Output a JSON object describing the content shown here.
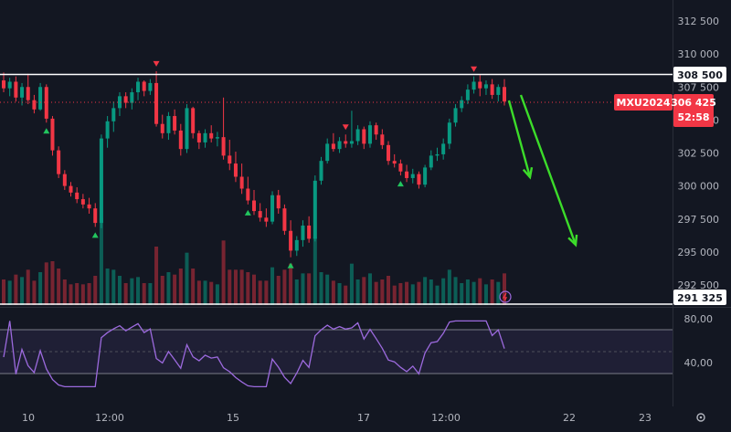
{
  "chart_data": {
    "type": "candlestick",
    "symbol": "MXU2024",
    "last_price_label": "306 425",
    "countdown": "52:58",
    "price_ticks": [
      "312 500",
      "310 000",
      "307 500",
      "305 000",
      "302 500",
      "300 000",
      "297 500",
      "295 000",
      "292 500"
    ],
    "price_range": [
      290500,
      313500
    ],
    "resistance_line": {
      "label": "308 500",
      "value": 308500
    },
    "support_line": {
      "label": "291 325",
      "value": 291325
    },
    "time_ticks": [
      "10",
      "12:00",
      "15",
      "17",
      "12:00",
      "22",
      "23"
    ],
    "rsi": {
      "ticks": [
        "80,00",
        "40,00"
      ],
      "range": [
        15,
        85
      ],
      "upper_band": 70,
      "lower_band": 30,
      "mid": 50
    },
    "candles": [
      [
        308000,
        308600,
        307100,
        307400
      ],
      [
        307400,
        308200,
        306800,
        307900
      ],
      [
        307900,
        308300,
        306400,
        306700
      ],
      [
        306700,
        307800,
        306100,
        307500
      ],
      [
        307500,
        308500,
        306200,
        306500
      ],
      [
        306500,
        306900,
        305500,
        305800
      ],
      [
        305800,
        307800,
        305700,
        307500
      ],
      [
        307500,
        307700,
        304800,
        305100
      ],
      [
        305100,
        305300,
        302300,
        302700
      ],
      [
        302700,
        303000,
        300600,
        300900
      ],
      [
        300900,
        301200,
        299700,
        300000
      ],
      [
        300000,
        300300,
        299200,
        299500
      ],
      [
        299500,
        299900,
        298700,
        299000
      ],
      [
        299000,
        299400,
        298300,
        298600
      ],
      [
        298600,
        299100,
        297900,
        298300
      ],
      [
        298300,
        298700,
        296900,
        297200
      ],
      [
        297200,
        303900,
        296800,
        303600
      ],
      [
        303600,
        305300,
        302900,
        304900
      ],
      [
        304900,
        306400,
        304100,
        305900
      ],
      [
        305900,
        307100,
        305300,
        306800
      ],
      [
        306800,
        307100,
        305900,
        306300
      ],
      [
        306300,
        307400,
        305800,
        307100
      ],
      [
        307100,
        308200,
        306500,
        307900
      ],
      [
        307900,
        308000,
        306800,
        307200
      ],
      [
        307200,
        308100,
        306900,
        307800
      ],
      [
        307800,
        308700,
        304500,
        304700
      ],
      [
        304700,
        305400,
        303600,
        304000
      ],
      [
        304000,
        305600,
        303500,
        305300
      ],
      [
        305300,
        305800,
        303900,
        304200
      ],
      [
        304200,
        304700,
        302300,
        302800
      ],
      [
        302800,
        306200,
        302500,
        305900
      ],
      [
        305900,
        306000,
        303600,
        304000
      ],
      [
        304000,
        304200,
        302800,
        303300
      ],
      [
        303300,
        304300,
        302900,
        304000
      ],
      [
        304000,
        304600,
        303300,
        303600
      ],
      [
        303600,
        304100,
        303000,
        303700
      ],
      [
        303700,
        306700,
        302000,
        302300
      ],
      [
        302300,
        303500,
        301200,
        301700
      ],
      [
        301700,
        302600,
        300300,
        300700
      ],
      [
        300700,
        301700,
        299400,
        299800
      ],
      [
        299800,
        300700,
        298600,
        298900
      ],
      [
        298900,
        299700,
        297800,
        298100
      ],
      [
        298100,
        298700,
        297300,
        297600
      ],
      [
        297600,
        298300,
        296900,
        297300
      ],
      [
        297300,
        299600,
        297100,
        299300
      ],
      [
        299300,
        299700,
        297900,
        298300
      ],
      [
        298300,
        298600,
        296300,
        296600
      ],
      [
        296600,
        297400,
        294600,
        295100
      ],
      [
        295100,
        296200,
        294700,
        295900
      ],
      [
        295900,
        297400,
        295400,
        297000
      ],
      [
        297000,
        297700,
        295700,
        296000
      ],
      [
        296000,
        300800,
        295800,
        300400
      ],
      [
        300400,
        302200,
        300100,
        301900
      ],
      [
        301900,
        303600,
        301700,
        303200
      ],
      [
        303200,
        304000,
        302600,
        302800
      ],
      [
        302800,
        303700,
        302500,
        303400
      ],
      [
        303400,
        303900,
        302900,
        303200
      ],
      [
        303200,
        305700,
        302900,
        303400
      ],
      [
        303400,
        304600,
        303100,
        304300
      ],
      [
        304300,
        304500,
        302800,
        303200
      ],
      [
        303200,
        304900,
        302900,
        304600
      ],
      [
        304600,
        304800,
        303500,
        303900
      ],
      [
        303900,
        304300,
        302800,
        303100
      ],
      [
        303100,
        303400,
        301600,
        301900
      ],
      [
        301900,
        302400,
        301400,
        301700
      ],
      [
        301700,
        302000,
        300800,
        301100
      ],
      [
        301100,
        301600,
        300300,
        300600
      ],
      [
        300600,
        301300,
        300200,
        300900
      ],
      [
        300900,
        301100,
        299800,
        300100
      ],
      [
        300100,
        301600,
        299900,
        301400
      ],
      [
        301400,
        302700,
        301200,
        302300
      ],
      [
        302300,
        302900,
        301900,
        302400
      ],
      [
        302400,
        303600,
        302000,
        303200
      ],
      [
        303200,
        305100,
        302800,
        304800
      ],
      [
        304800,
        306200,
        304500,
        305900
      ],
      [
        305900,
        306800,
        305600,
        306500
      ],
      [
        306500,
        307700,
        306200,
        307300
      ],
      [
        307300,
        308300,
        307000,
        307900
      ],
      [
        307900,
        308400,
        306800,
        307400
      ],
      [
        307400,
        308000,
        306900,
        307700
      ],
      [
        307700,
        308100,
        306600,
        306900
      ],
      [
        306900,
        307700,
        306400,
        307500
      ],
      [
        307500,
        308100,
        306100,
        306400
      ]
    ]
  },
  "icons": {
    "flash": "lightning-icon",
    "settings": "gear-icon"
  }
}
